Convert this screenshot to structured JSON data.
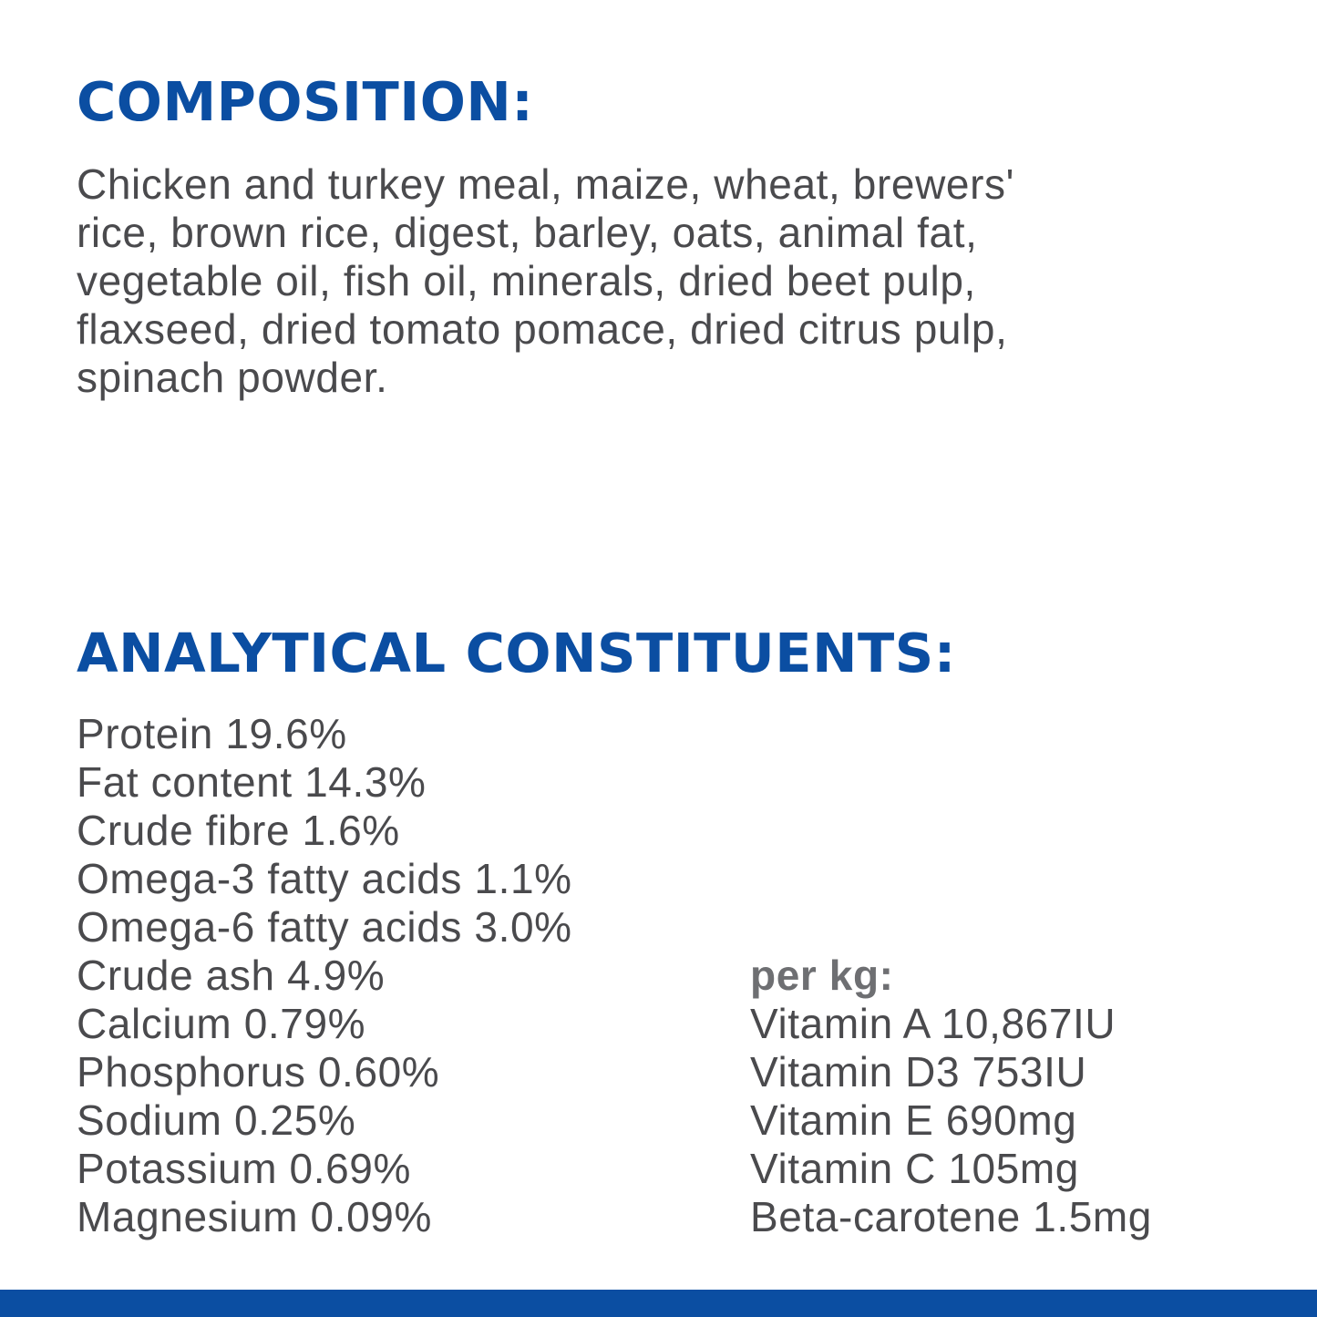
{
  "composition": {
    "heading": "COMPOSITION:",
    "lines": [
      "Chicken and turkey meal, maize, wheat, brewers'",
      "rice, brown rice, digest, barley, oats, animal fat,",
      "vegetable oil, fish oil, minerals, dried beet pulp,",
      "flaxseed, dried tomato pomace, dried citrus pulp,",
      "spinach powder."
    ]
  },
  "analytical": {
    "heading": "ANALYTICAL CONSTITUENTS:",
    "items": [
      "Protein 19.6%",
      "Fat content 14.3%",
      "Crude fibre 1.6%",
      "Omega-3 fatty acids 1.1%",
      "Omega-6 fatty acids 3.0%",
      "Crude ash 4.9%",
      "Calcium 0.79%",
      "Phosphorus 0.60%",
      "Sodium 0.25%",
      "Potassium 0.69%",
      "Magnesium 0.09%"
    ],
    "per_kg": {
      "label": "per kg:",
      "items": [
        "Vitamin A 10,867IU",
        "Vitamin D3 753IU",
        "Vitamin E 690mg",
        "Vitamin C 105mg",
        "Beta-carotene 1.5mg"
      ]
    }
  },
  "colors": {
    "heading": "#0b4ea2",
    "body_text": "#4a4a4d",
    "bottom_bar": "#0b4ea2"
  }
}
